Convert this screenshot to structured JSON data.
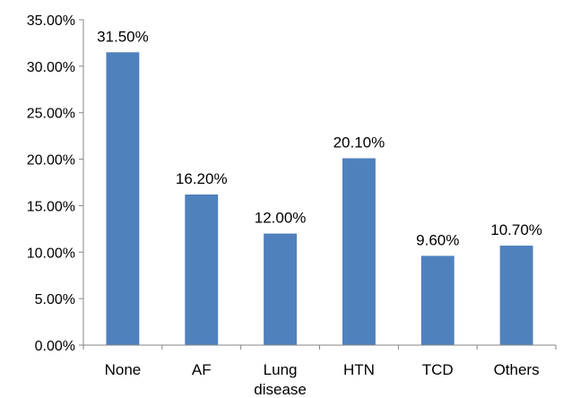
{
  "chart_data": {
    "type": "bar",
    "categories": [
      "None",
      "AF",
      "Lung disease",
      "HTN",
      "TCD",
      "Others"
    ],
    "category_lines": [
      [
        "None"
      ],
      [
        "AF"
      ],
      [
        "Lung",
        "disease"
      ],
      [
        "HTN"
      ],
      [
        "TCD"
      ],
      [
        "Others"
      ]
    ],
    "values": [
      31.5,
      16.2,
      12.0,
      20.1,
      9.6,
      10.7
    ],
    "data_labels": [
      "31.50%",
      "16.20%",
      "12.00%",
      "20.10%",
      "9.60%",
      "10.70%"
    ],
    "title": "",
    "xlabel": "",
    "ylabel": "",
    "ylim": [
      0,
      35
    ],
    "yticks": [
      0,
      5,
      10,
      15,
      20,
      25,
      30,
      35
    ],
    "ytick_labels": [
      "0.00%",
      "5.00%",
      "10.00%",
      "15.00%",
      "20.00%",
      "25.00%",
      "30.00%",
      "35.00%"
    ],
    "grid": false,
    "legend": "none",
    "bar_color": "#4f81bd",
    "axis_color": "#868686"
  }
}
